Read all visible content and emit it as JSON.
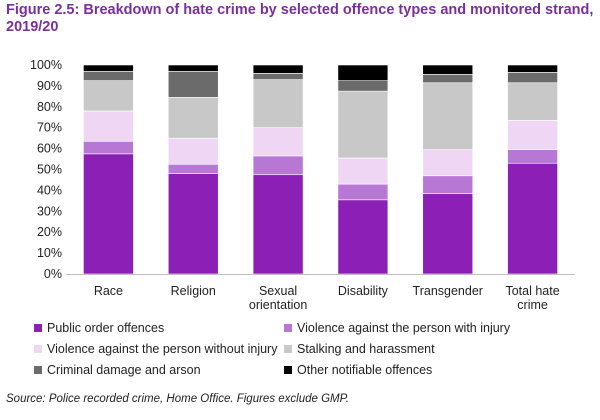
{
  "header": {
    "title": "Figure 2.5: Breakdown of hate crime by selected offence types and monitored strand, 2019/20"
  },
  "source": "Source: Police recorded crime, Home Office. Figures exclude GMP.",
  "chart_data": {
    "type": "bar",
    "stacked": true,
    "percent": true,
    "categories": [
      [
        "Race"
      ],
      [
        "Religion"
      ],
      [
        "Sexual",
        "orientation"
      ],
      [
        "Disability"
      ],
      [
        "Transgender"
      ],
      [
        "Total hate",
        "crime"
      ]
    ],
    "ylim": [
      0,
      100
    ],
    "yticks": [
      "0%",
      "10%",
      "20%",
      "30%",
      "40%",
      "50%",
      "60%",
      "70%",
      "80%",
      "90%",
      "100%"
    ],
    "grid": false,
    "legend_position": "bottom",
    "series": [
      {
        "name": "Public order offences",
        "color": "#8c1fb5",
        "values": [
          57.5,
          48,
          47.5,
          35.5,
          38.5,
          53
        ]
      },
      {
        "name": "Violence against the person with injury",
        "color": "#b777d5",
        "values": [
          6,
          4.5,
          9,
          7.5,
          8.5,
          6.5
        ]
      },
      {
        "name": "Violence against the person without injury",
        "color": "#f0d6f5",
        "values": [
          14.5,
          12.5,
          13.5,
          12.5,
          12.5,
          14
        ]
      },
      {
        "name": "Stalking and harassment",
        "color": "#c8c8c8",
        "values": [
          14.5,
          19.5,
          23,
          32,
          32,
          18
        ]
      },
      {
        "name": "Criminal damage and arson",
        "color": "#6b6b6b",
        "values": [
          4.5,
          12.5,
          3,
          5,
          4,
          5
        ]
      },
      {
        "name": "Other notifiable offences",
        "color": "#000000",
        "values": [
          3,
          3,
          4,
          7.5,
          4.5,
          3.5
        ]
      }
    ]
  }
}
